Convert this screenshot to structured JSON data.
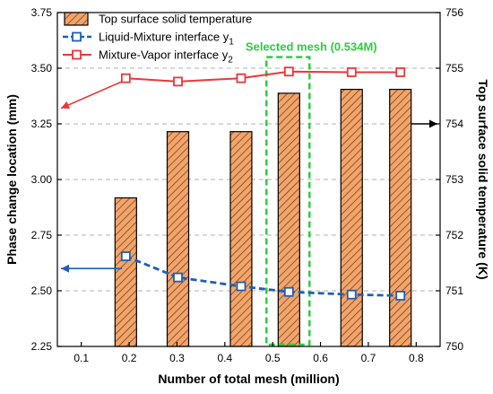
{
  "chart_data": {
    "type": "bar",
    "xlabel": "Number of total mesh (million)",
    "ylabel_left": "Phase change location (mm)",
    "ylabel_right": "Top surface solid temperature (K)",
    "xlim": [
      0.05,
      0.85
    ],
    "ylim_left": [
      2.25,
      3.75
    ],
    "ylim_right": [
      750,
      756
    ],
    "x_ticks": [
      "0.1",
      "0.2",
      "0.3",
      "0.4",
      "0.5",
      "0.6",
      "0.7",
      "0.8"
    ],
    "y_left_ticks": [
      "2.25",
      "2.50",
      "2.75",
      "3.00",
      "3.25",
      "3.50",
      "3.75"
    ],
    "y_right_ticks": [
      "750",
      "751",
      "752",
      "753",
      "754",
      "755",
      "756"
    ],
    "grid": "horizontal-dashed",
    "legend_placement": "top-left",
    "x": [
      0.193,
      0.302,
      0.434,
      0.534,
      0.665,
      0.767
    ],
    "series": [
      {
        "name": "Top surface solid temperature",
        "kind": "bar",
        "axis": "right",
        "values": [
          752.67,
          753.86,
          753.86,
          754.55,
          754.62,
          754.62
        ],
        "color": "#f2a46a"
      },
      {
        "name": "Liquid-Mixture interface y",
        "name_sub": "1",
        "kind": "line",
        "axis": "left",
        "values": [
          2.655,
          2.56,
          2.52,
          2.495,
          2.483,
          2.478
        ],
        "color": "#1f5fb4"
      },
      {
        "name": "Mixture-Vapor interface y",
        "name_sub": "2",
        "kind": "line",
        "axis": "left",
        "values": [
          3.455,
          3.44,
          3.455,
          3.485,
          3.482,
          3.482
        ],
        "color": "#e8383b"
      }
    ],
    "annotation": {
      "text": "Selected mesh (0.534M)",
      "x_range": [
        0.487,
        0.577
      ],
      "y_range": [
        2.25,
        3.55
      ],
      "color": "#2ecc40"
    }
  }
}
